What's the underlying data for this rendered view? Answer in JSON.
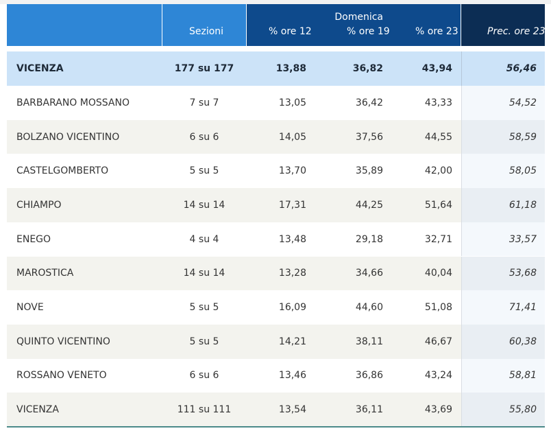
{
  "header": {
    "sezioni": "Sezioni",
    "domenica": "Domenica",
    "ore12": "% ore 12",
    "ore19": "% ore 19",
    "ore23": "% ore 23",
    "prec": "Prec. ore 23"
  },
  "total": {
    "name": "VICENZA",
    "sezioni": "177 su 177",
    "ore12": "13,88",
    "ore19": "36,82",
    "ore23": "43,94",
    "prec": "56,46"
  },
  "rows": [
    {
      "name": "BARBARANO MOSSANO",
      "sezioni": "7 su 7",
      "ore12": "13,05",
      "ore19": "36,42",
      "ore23": "43,33",
      "prec": "54,52"
    },
    {
      "name": "BOLZANO VICENTINO",
      "sezioni": "6 su 6",
      "ore12": "14,05",
      "ore19": "37,56",
      "ore23": "44,55",
      "prec": "58,59"
    },
    {
      "name": "CASTELGOMBERTO",
      "sezioni": "5 su 5",
      "ore12": "13,70",
      "ore19": "35,89",
      "ore23": "42,00",
      "prec": "58,05"
    },
    {
      "name": "CHIAMPO",
      "sezioni": "14 su 14",
      "ore12": "17,31",
      "ore19": "44,25",
      "ore23": "51,64",
      "prec": "61,18"
    },
    {
      "name": "ENEGO",
      "sezioni": "4 su 4",
      "ore12": "13,48",
      "ore19": "29,18",
      "ore23": "32,71",
      "prec": "33,57"
    },
    {
      "name": "MAROSTICA",
      "sezioni": "14 su 14",
      "ore12": "13,28",
      "ore19": "34,66",
      "ore23": "40,04",
      "prec": "53,68"
    },
    {
      "name": "NOVE",
      "sezioni": "5 su 5",
      "ore12": "16,09",
      "ore19": "44,60",
      "ore23": "51,08",
      "prec": "71,41"
    },
    {
      "name": "QUINTO VICENTINO",
      "sezioni": "5 su 5",
      "ore12": "14,21",
      "ore19": "38,11",
      "ore23": "46,67",
      "prec": "60,38"
    },
    {
      "name": "ROSSANO VENETO",
      "sezioni": "6 su 6",
      "ore12": "13,46",
      "ore19": "36,86",
      "ore23": "43,24",
      "prec": "58,81"
    },
    {
      "name": "VICENZA",
      "sezioni": "111 su 111",
      "ore12": "13,54",
      "ore19": "36,11",
      "ore23": "43,69",
      "prec": "55,80"
    }
  ]
}
